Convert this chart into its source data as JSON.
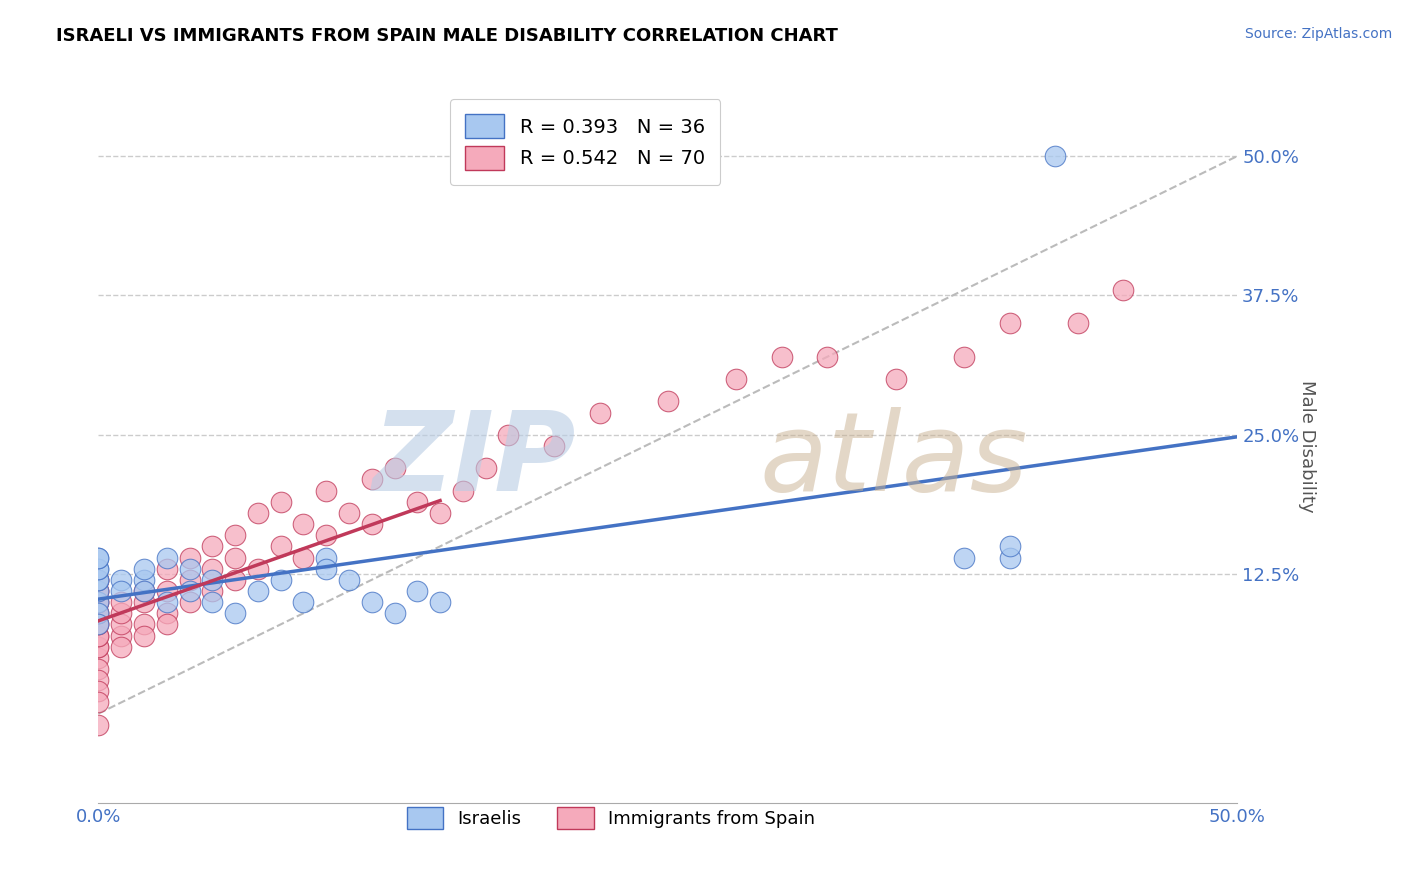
{
  "title": "ISRAELI VS IMMIGRANTS FROM SPAIN MALE DISABILITY CORRELATION CHART",
  "source": "Source: ZipAtlas.com",
  "ylabel": "Male Disability",
  "xlim": [
    0.0,
    0.5
  ],
  "ylim": [
    -0.08,
    0.56
  ],
  "xtick_vals": [
    0.0,
    0.5
  ],
  "xtick_labels": [
    "0.0%",
    "50.0%"
  ],
  "ytick_vals": [
    0.125,
    0.25,
    0.375,
    0.5
  ],
  "ytick_labels": [
    "12.5%",
    "25.0%",
    "37.5%",
    "50.0%"
  ],
  "legend_r1": "R = 0.393",
  "legend_n1": "N = 36",
  "legend_r2": "R = 0.542",
  "legend_n2": "N = 70",
  "color_israeli": "#A8C8F0",
  "color_spain": "#F5AABB",
  "color_line_israeli": "#4472C4",
  "color_line_spain": "#C0395A",
  "color_trendline_dashed": "#BBBBBB",
  "israelis_x": [
    0.0,
    0.0,
    0.0,
    0.0,
    0.0,
    0.0,
    0.0,
    0.0,
    0.0,
    0.0,
    0.01,
    0.01,
    0.02,
    0.02,
    0.02,
    0.03,
    0.03,
    0.04,
    0.04,
    0.05,
    0.05,
    0.06,
    0.07,
    0.08,
    0.09,
    0.1,
    0.1,
    0.11,
    0.12,
    0.13,
    0.14,
    0.15,
    0.38,
    0.4,
    0.4,
    0.42
  ],
  "israelis_y": [
    0.1,
    0.11,
    0.12,
    0.12,
    0.13,
    0.13,
    0.14,
    0.14,
    0.09,
    0.08,
    0.12,
    0.11,
    0.12,
    0.13,
    0.11,
    0.14,
    0.1,
    0.13,
    0.11,
    0.12,
    0.1,
    0.09,
    0.11,
    0.12,
    0.1,
    0.14,
    0.13,
    0.12,
    0.1,
    0.09,
    0.11,
    0.1,
    0.14,
    0.14,
    0.15,
    0.5
  ],
  "spain_x": [
    0.0,
    0.0,
    0.0,
    0.0,
    0.0,
    0.0,
    0.0,
    0.0,
    0.0,
    0.0,
    0.0,
    0.0,
    0.0,
    0.0,
    0.0,
    0.0,
    0.0,
    0.0,
    0.0,
    0.0,
    0.01,
    0.01,
    0.01,
    0.01,
    0.01,
    0.02,
    0.02,
    0.02,
    0.02,
    0.03,
    0.03,
    0.03,
    0.03,
    0.04,
    0.04,
    0.04,
    0.05,
    0.05,
    0.05,
    0.06,
    0.06,
    0.06,
    0.07,
    0.07,
    0.08,
    0.08,
    0.09,
    0.09,
    0.1,
    0.1,
    0.11,
    0.12,
    0.12,
    0.13,
    0.14,
    0.15,
    0.16,
    0.17,
    0.18,
    0.2,
    0.22,
    0.25,
    0.28,
    0.3,
    0.32,
    0.35,
    0.38,
    0.4,
    0.43,
    0.45
  ],
  "spain_y": [
    0.05,
    0.06,
    0.06,
    0.07,
    0.07,
    0.08,
    0.08,
    0.09,
    0.09,
    0.1,
    0.1,
    0.11,
    0.11,
    0.12,
    0.12,
    0.04,
    0.03,
    0.02,
    0.01,
    -0.01,
    0.07,
    0.08,
    0.09,
    0.1,
    0.06,
    0.08,
    0.1,
    0.11,
    0.07,
    0.09,
    0.11,
    0.13,
    0.08,
    0.1,
    0.12,
    0.14,
    0.11,
    0.13,
    0.15,
    0.12,
    0.14,
    0.16,
    0.13,
    0.18,
    0.15,
    0.19,
    0.14,
    0.17,
    0.16,
    0.2,
    0.18,
    0.17,
    0.21,
    0.22,
    0.19,
    0.18,
    0.2,
    0.22,
    0.25,
    0.24,
    0.27,
    0.28,
    0.3,
    0.32,
    0.32,
    0.3,
    0.32,
    0.35,
    0.35,
    0.38
  ]
}
